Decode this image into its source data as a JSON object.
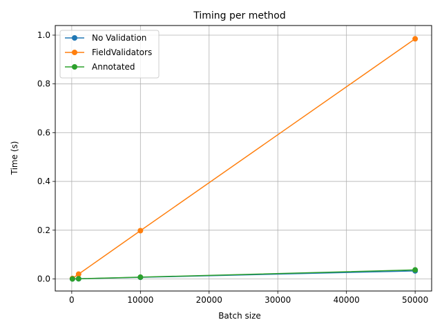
{
  "chart_data": {
    "type": "line",
    "title": "Timing per method",
    "xlabel": "Batch size",
    "ylabel": "Time (s)",
    "x": [
      100,
      1000,
      10000,
      50000
    ],
    "xlim": [
      -2400,
      52400
    ],
    "ylim": [
      -0.0495,
      1.0395
    ],
    "xticks": [
      0,
      10000,
      20000,
      30000,
      40000,
      50000
    ],
    "yticks": [
      0.0,
      0.2,
      0.4,
      0.6,
      0.8,
      1.0
    ],
    "xtick_labels": [
      "0",
      "10000",
      "20000",
      "30000",
      "40000",
      "50000"
    ],
    "ytick_labels": [
      "0.0",
      "0.2",
      "0.4",
      "0.6",
      "0.8",
      "1.0"
    ],
    "grid": true,
    "legend_placement": "upper-left",
    "series": [
      {
        "name": "No Validation",
        "color": "#1f77b4",
        "values": [
          0.0001,
          0.0007,
          0.0066,
          0.033
        ]
      },
      {
        "name": "FieldValidators",
        "color": "#ff7f0e",
        "values": [
          0.002,
          0.0197,
          0.198,
          0.985
        ]
      },
      {
        "name": "Annotated",
        "color": "#2ca02c",
        "values": [
          0.0001,
          0.0008,
          0.0073,
          0.037
        ]
      }
    ]
  }
}
